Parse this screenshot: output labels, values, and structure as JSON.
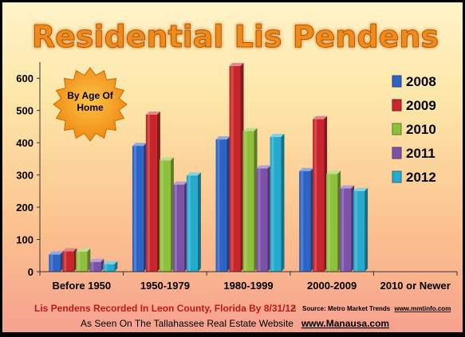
{
  "chart_data": {
    "type": "bar",
    "title": "Residential Lis Pendens",
    "badge": [
      "By Age Of",
      "Home"
    ],
    "categories": [
      "Before 1950",
      "1950-1979",
      "1980-1999",
      "2000-2009",
      "2010 or Newer"
    ],
    "series": [
      {
        "name": "2008",
        "color": "#2e63c6",
        "values": [
          53,
          390,
          410,
          312,
          0
        ]
      },
      {
        "name": "2009",
        "color": "#c8262c",
        "values": [
          63,
          487,
          638,
          473,
          0
        ]
      },
      {
        "name": "2010",
        "color": "#8ec03b",
        "values": [
          62,
          345,
          436,
          303,
          0
        ]
      },
      {
        "name": "2011",
        "color": "#7c52a8",
        "values": [
          30,
          270,
          320,
          258,
          0
        ]
      },
      {
        "name": "2012",
        "color": "#25aacd",
        "values": [
          23,
          298,
          418,
          250,
          0
        ]
      }
    ],
    "ylim": [
      0,
      650
    ],
    "yticks": [
      "0",
      "100",
      "200",
      "300",
      "400",
      "500",
      "600"
    ],
    "legend_position": "right",
    "grid": false
  },
  "footer": {
    "caption": "Lis Pendens Recorded In Leon County, Florida By 8/31/12",
    "source_label": "Source: Metro Market Trends",
    "source_url": "www.mmtinfo.com",
    "seen_on": "As Seen On The Tallahassee Real Estate Website",
    "website": "www.Manausa.com"
  }
}
